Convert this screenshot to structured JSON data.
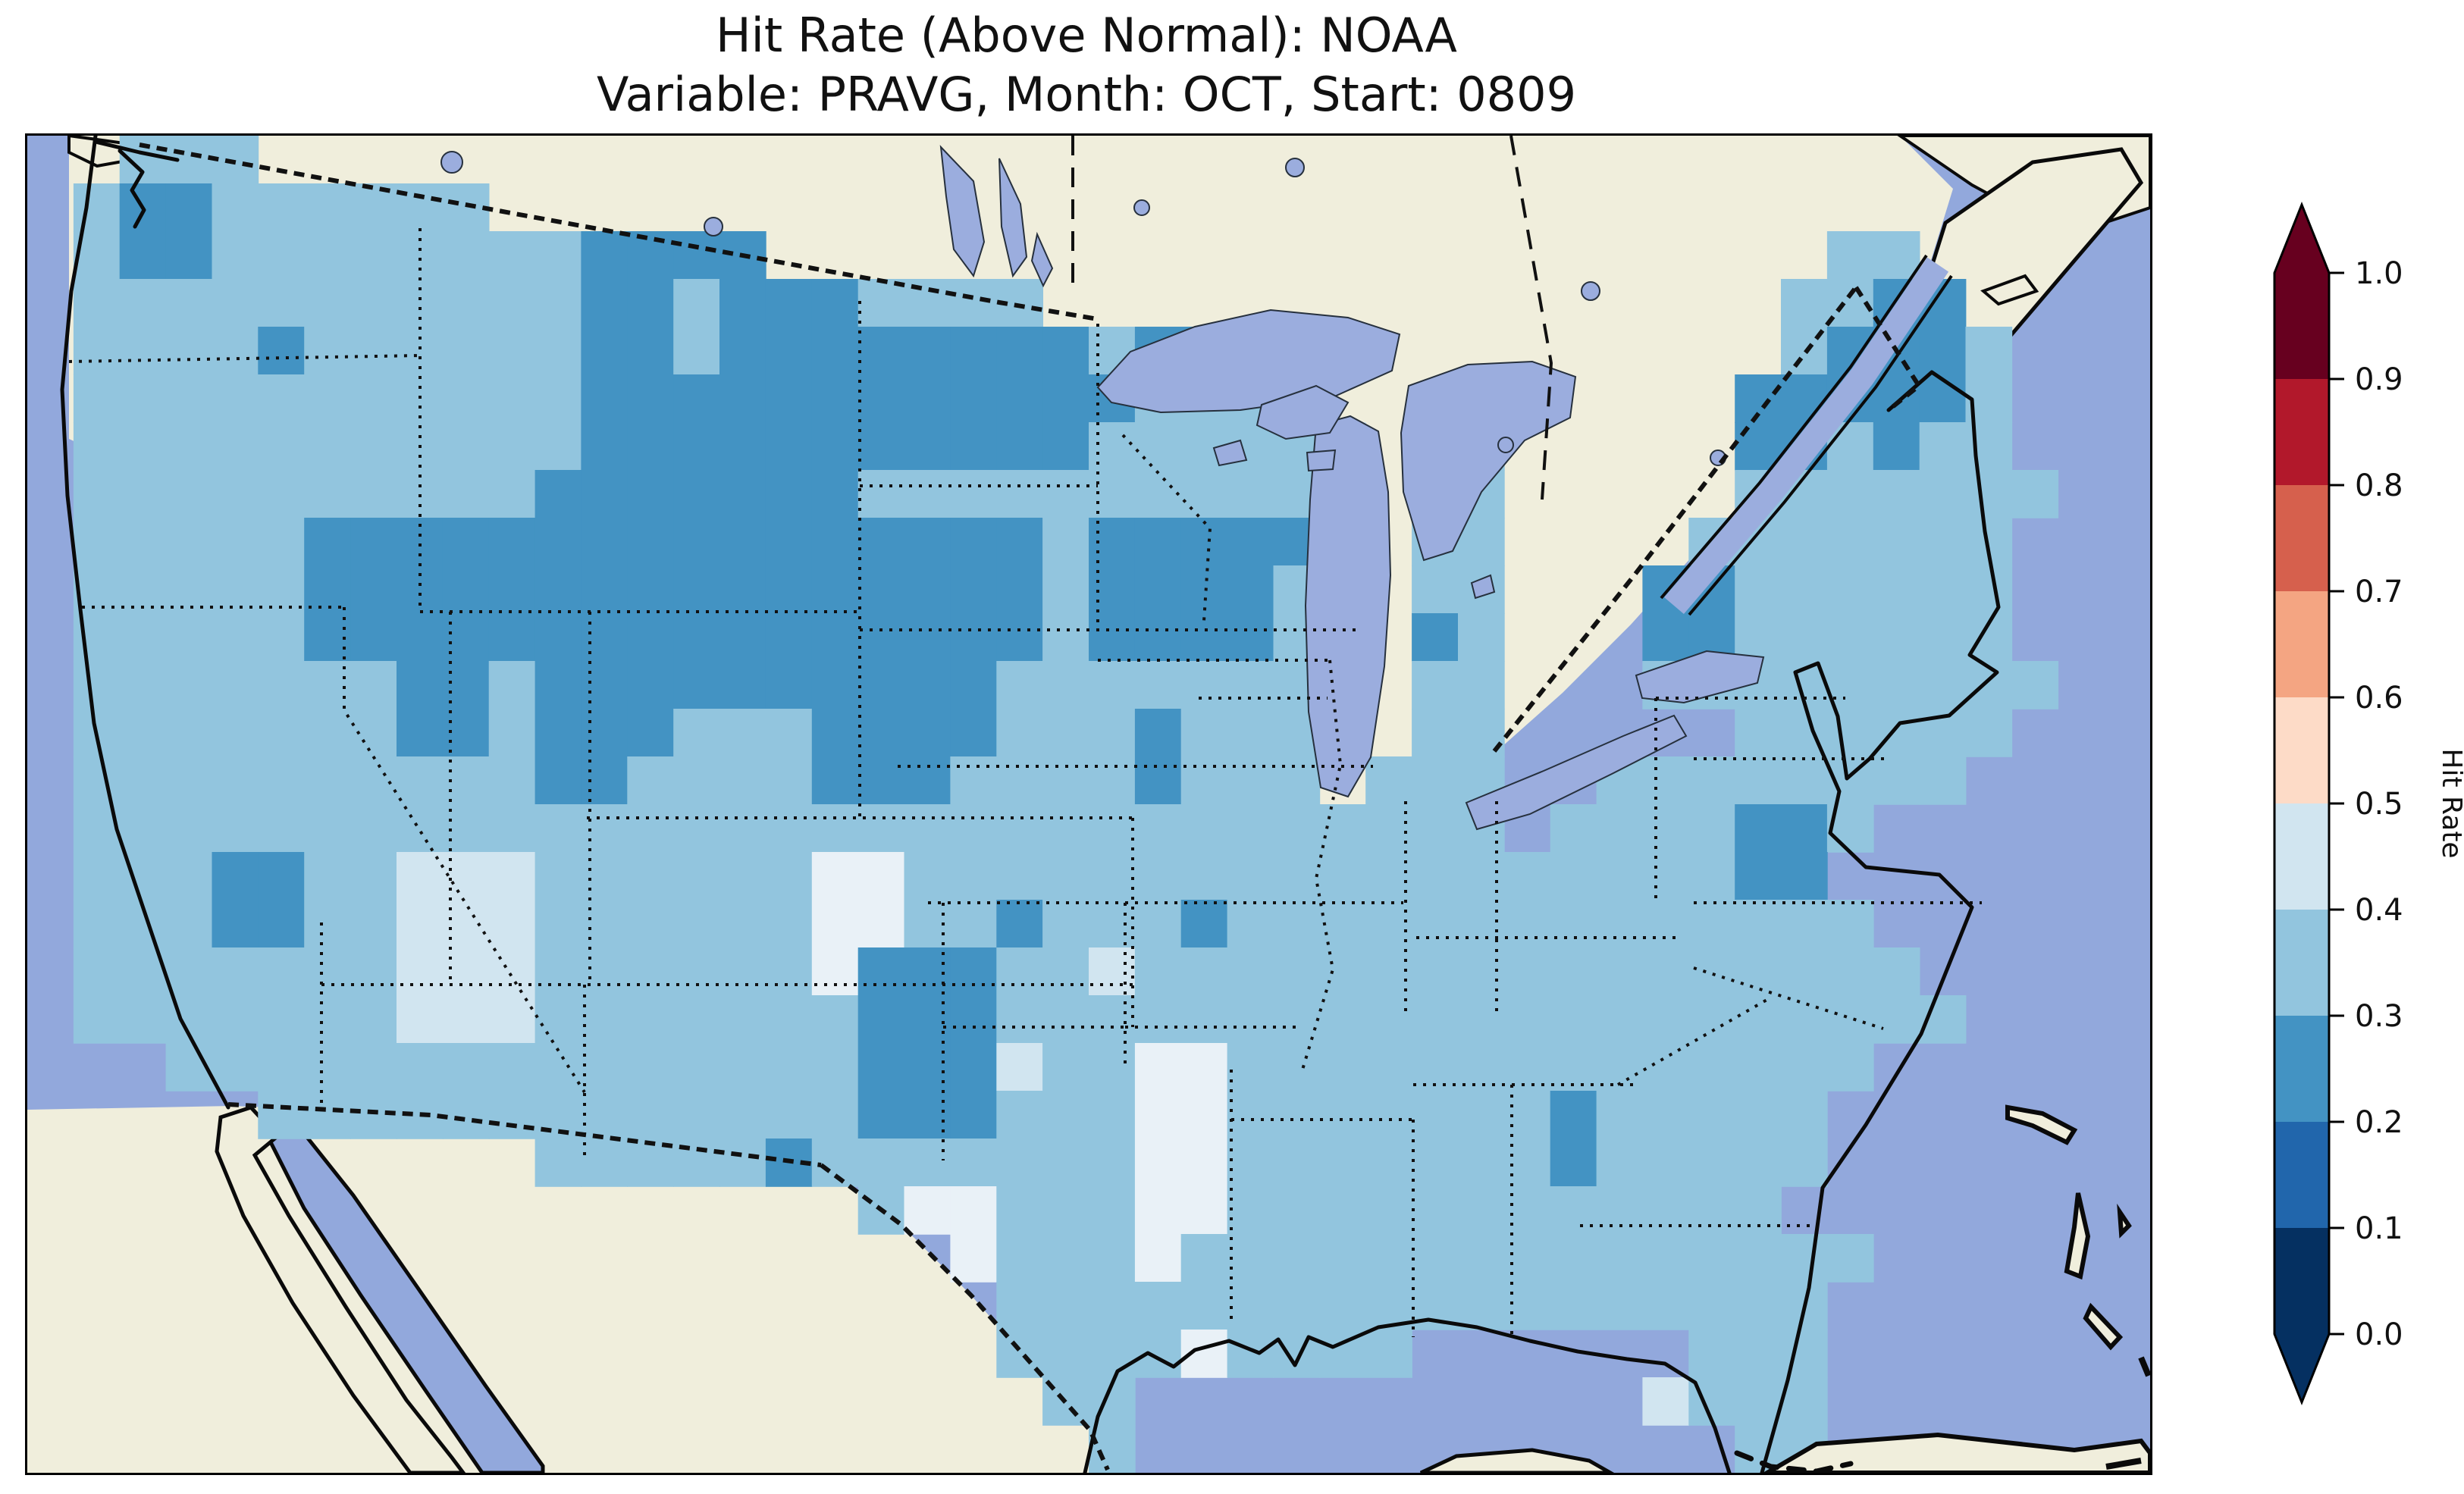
{
  "title": {
    "line1": "Hit Rate (Above Normal): NOAA",
    "line2": "Variable: PRAVG, Month: OCT, Start: 0809"
  },
  "colorbar": {
    "label": "Hit Rate",
    "ticks": [
      "1.0",
      "0.9",
      "0.8",
      "0.7",
      "0.6",
      "0.5",
      "0.4",
      "0.3",
      "0.2",
      "0.1",
      "0.0"
    ],
    "bins_bottom_to_top": [
      {
        "range": "0.0-0.1",
        "color": "#053061"
      },
      {
        "range": "0.1-0.2",
        "color": "#2166ac"
      },
      {
        "range": "0.2-0.3",
        "color": "#4393c3"
      },
      {
        "range": "0.3-0.4",
        "color": "#92c5de"
      },
      {
        "range": "0.4-0.5",
        "color": "#d1e5f0"
      },
      {
        "range": "0.5-0.6",
        "color": "#fddbc7"
      },
      {
        "range": "0.6-0.7",
        "color": "#f4a582"
      },
      {
        "range": "0.7-0.8",
        "color": "#d6604d"
      },
      {
        "range": "0.8-0.9",
        "color": "#b2182b"
      },
      {
        "range": "0.9-1.0",
        "color": "#67001f"
      }
    ],
    "over_arrow_color": "#67001f",
    "under_arrow_color": "#053061"
  },
  "map": {
    "colors": {
      "ocean": "#92a8dc",
      "land": "#f0eedc",
      "lake": "#9badde",
      "coast": "#0a0a0a",
      "border": "#111111"
    }
  },
  "chart_data": {
    "type": "heatmap",
    "title": "Hit Rate (Above Normal): NOAA",
    "subtitle": "Variable: PRAVG, Month: OCT, Start: 0809",
    "geography": "Contiguous United States with southern Canada, northern Mexico, Bahamas and Cuba visible",
    "value_label": "Hit Rate",
    "value_range": [
      0.0,
      1.0
    ],
    "bin_width": 0.1,
    "legend_position": "right vertical colorbar with extend arrows both ends",
    "observed_value_bins_on_map": [
      "0.2-0.3",
      "0.3-0.4",
      "0.4-0.5"
    ],
    "regions_summary": [
      {
        "hit_rate_bin": "0.2-0.3",
        "areas": "Northern Rockies and High Plains (Montana, Wyoming, Idaho, Dakotas, Nebraska, N Colorado, N Utah, NE Nevada), SE Minnesota / N Iowa / SW Wisconsin, SW Oklahoma / N Texas, Puget Sound, central Pennsylvania, Adirondacks NY, interior Maine, SE Virginia coast, scattered cells in Arizona, Kansas, Missouri, Georgia"
      },
      {
        "hit_rate_bin": "0.3-0.4",
        "areas": "Most of the contiguous US (dominant background value)"
      },
      {
        "hit_rate_bin": "0.4-0.5",
        "areas": "SE Arizona / SW New Mexico / S Utah patch, E New Mexico - W Texas patch, E Texas to W Louisiana/Arkansas strip, S Texas coast, scattered cells in Kansas, upper Michigan shore, south Florida"
      }
    ],
    "grid": {
      "note": "Coarse rasterization of the gridded hit-rate field; one char per cell, 46 cols x 28 rows over the map panel",
      "legend": {
        "a": {
          "hit_rate_bin": "0.2-0.3",
          "color": "#4393c3"
        },
        "b": {
          "hit_rate_bin": "0.3-0.4",
          "color": "#92c5de"
        },
        "c": {
          "hit_rate_bin": "0.4-0.5",
          "color": "#d1e5f0"
        },
        "d": {
          "hit_rate_bin": "0.4-0.5",
          "color": "#e9f1f7"
        }
      },
      "rows": [
        "..bbb.........................................",
        ".baabbbbbb....................................",
        ".baabbbbbbbbaaaa.......................bb.....",
        ".bbbbbbbbbbbaabaaabbbb................bbaa....",
        ".bbbbabbbbbbaabaaaaaaaabaa............baaab...",
        ".bbbbbbbbbbbaaaaaaaaaaaabbb..........aaaaab...",
        ".bbbbbbbbbbbaaaaaaaaaaabbbbbc.bb.....aababb...",
        ".bbbbbbbbbbaaaaaaabbbbbbbbbb..bb.....bbbbbbb..",
        ".bbbbbaaaaaaaaaaaaaaaabaaaaa..bb....bbbbbbb...",
        ".bbbbbaaaaaaaaaaaaaaaabaaaab..bb...aabbbbbb...",
        ".bbbbbaaaaaaaaaaaaaaaabaaaab..ab...aabbbbbb...",
        ".bbbbbbbaabaaaaaaaaaabbbbbbb..bb...bbbbbbbbb..",
        ".bbbbbbbaabaaabbbaaaabbbabbb..bb.....bbbbbb...",
        ".bbbbbbbbbbaabbbbaaabbbbabbb.bbb..bbbbbbbb....",
        ".bbbbbbbbbbbbbbbbbbbbbbbbbbbbbbb.bbbbaab......",
        ".bbbaabbcccbbbbbbddbbbbbbbbbbbbbbbbbbaa.......",
        ".bbbaabbcccbbbbbbddbbabbbabbbbbbbbbbbbbb......",
        ".bbbbbbbcccbbbbbbdaaabbcbbbbbbbbbbbbbbbbb.....",
        ".bbbbbbbcccbbbbbbbaaabbbbbbbbbbbbbbbbbbbbb....",
        "...bbbbbbbbbbbbbbbaaacbbddbbbbbbbbbbbbbb......",
        ".....bbbbbbbbbbbbbaaabbbddbbbbbbbabbbbb.......",
        "...........bbbbbabbbbbbbddbbbbbbbabbbbb.......",
        "..................bddbbbddbbbbbbbbbbbb........",
        "....................dbbbdbbbbbbbbbbbbbbb......",
        ".....................bbbbbbbbbbbbbbbbbb.......",
        ".....................bbbbdbbbb......bbb.......",
        "......................bb...........cbbb.......",
        ".......................b.............bb......."
      ]
    }
  }
}
